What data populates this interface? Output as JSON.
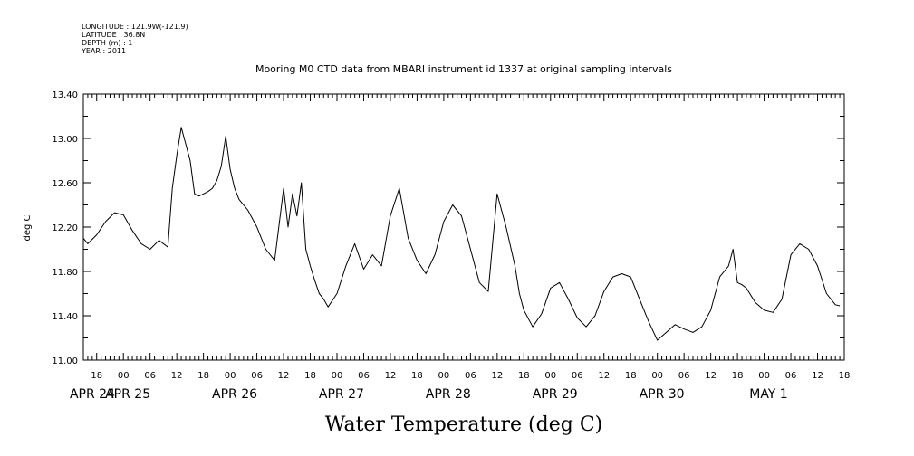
{
  "meta": {
    "longitude": "LONGITUDE : 121.9W(-121.9)",
    "latitude": "LATITUDE : 36.8N",
    "depth": "DEPTH (m) : 1",
    "year": "YEAR : 2011"
  },
  "chart_data": {
    "type": "line",
    "title": "Mooring M0 CTD data from MBARI instrument id 1337 at original sampling intervals",
    "xlabel": "Water Temperature (deg C)",
    "ylabel": "deg C",
    "ylim": [
      11.0,
      13.4
    ],
    "yticks": [
      "11.00",
      "11.40",
      "11.80",
      "12.20",
      "12.60",
      "13.00",
      "13.40"
    ],
    "xlim": [
      "2011-04-24T15:00",
      "2011-05-01T18:00"
    ],
    "x_hour_ticks": [
      "18",
      "00",
      "06",
      "12",
      "18",
      "00",
      "06",
      "12",
      "18",
      "00",
      "06",
      "12",
      "18",
      "00",
      "06",
      "12",
      "18",
      "00",
      "06",
      "12",
      "18",
      "00",
      "06",
      "12",
      "18",
      "00",
      "06",
      "12",
      "18",
      "00",
      "06",
      "12"
    ],
    "x_day_labels": [
      "APR 24",
      "APR 25",
      "APR 26",
      "APR 27",
      "APR 28",
      "APR 29",
      "APR 30",
      "MAY  1"
    ],
    "series": [
      {
        "color": "#000000",
        "x": [
          "2011-04-24T15:00",
          "2011-04-24T16:00",
          "2011-04-24T18:00",
          "2011-04-24T20:00",
          "2011-04-24T22:00",
          "2011-04-25T00:00",
          "2011-04-25T02:00",
          "2011-04-25T04:00",
          "2011-04-25T06:00",
          "2011-04-25T08:00",
          "2011-04-25T10:00",
          "2011-04-25T11:00",
          "2011-04-25T12:00",
          "2011-04-25T13:00",
          "2011-04-25T14:00",
          "2011-04-25T15:00",
          "2011-04-25T16:00",
          "2011-04-25T17:00",
          "2011-04-25T18:00",
          "2011-04-25T19:00",
          "2011-04-25T20:00",
          "2011-04-25T21:00",
          "2011-04-25T22:00",
          "2011-04-25T23:00",
          "2011-04-26T00:00",
          "2011-04-26T01:00",
          "2011-04-26T02:00",
          "2011-04-26T04:00",
          "2011-04-26T06:00",
          "2011-04-26T08:00",
          "2011-04-26T10:00",
          "2011-04-26T12:00",
          "2011-04-26T13:00",
          "2011-04-26T14:00",
          "2011-04-26T15:00",
          "2011-04-26T16:00",
          "2011-04-26T17:00",
          "2011-04-26T18:00",
          "2011-04-26T19:00",
          "2011-04-26T20:00",
          "2011-04-26T21:00",
          "2011-04-26T22:00",
          "2011-04-27T00:00",
          "2011-04-27T02:00",
          "2011-04-27T04:00",
          "2011-04-27T06:00",
          "2011-04-27T08:00",
          "2011-04-27T10:00",
          "2011-04-27T12:00",
          "2011-04-27T14:00",
          "2011-04-27T16:00",
          "2011-04-27T18:00",
          "2011-04-27T20:00",
          "2011-04-27T22:00",
          "2011-04-28T00:00",
          "2011-04-28T02:00",
          "2011-04-28T04:00",
          "2011-04-28T06:00",
          "2011-04-28T08:00",
          "2011-04-28T10:00",
          "2011-04-28T12:00",
          "2011-04-28T14:00",
          "2011-04-28T16:00",
          "2011-04-28T17:00",
          "2011-04-28T18:00",
          "2011-04-28T20:00",
          "2011-04-28T22:00",
          "2011-04-29T00:00",
          "2011-04-29T02:00",
          "2011-04-29T04:00",
          "2011-04-29T06:00",
          "2011-04-29T08:00",
          "2011-04-29T10:00",
          "2011-04-29T12:00",
          "2011-04-29T14:00",
          "2011-04-29T16:00",
          "2011-04-29T18:00",
          "2011-04-29T20:00",
          "2011-04-29T22:00",
          "2011-04-30T00:00",
          "2011-04-30T02:00",
          "2011-04-30T04:00",
          "2011-04-30T06:00",
          "2011-04-30T08:00",
          "2011-04-30T10:00",
          "2011-04-30T12:00",
          "2011-04-30T14:00",
          "2011-04-30T16:00",
          "2011-04-30T17:00",
          "2011-04-30T18:00",
          "2011-04-30T19:00",
          "2011-04-30T20:00",
          "2011-04-30T22:00",
          "2011-05-01T00:00",
          "2011-05-01T02:00",
          "2011-05-01T04:00",
          "2011-05-01T06:00",
          "2011-05-01T08:00",
          "2011-05-01T10:00",
          "2011-05-01T12:00",
          "2011-05-01T14:00",
          "2011-05-01T16:00",
          "2011-05-01T17:00"
        ],
        "values": [
          12.1,
          12.05,
          12.13,
          12.25,
          12.33,
          12.31,
          12.17,
          12.05,
          12.0,
          12.08,
          12.02,
          12.55,
          12.85,
          13.1,
          12.95,
          12.8,
          12.5,
          12.48,
          12.5,
          12.52,
          12.55,
          12.62,
          12.75,
          13.02,
          12.72,
          12.55,
          12.45,
          12.35,
          12.2,
          12.0,
          11.9,
          12.55,
          12.2,
          12.5,
          12.3,
          12.6,
          12.0,
          11.85,
          11.72,
          11.6,
          11.55,
          11.48,
          11.6,
          11.85,
          12.05,
          11.82,
          11.95,
          11.85,
          12.3,
          12.55,
          12.1,
          11.9,
          11.78,
          11.95,
          12.25,
          12.4,
          12.3,
          12.0,
          11.7,
          11.62,
          12.5,
          12.2,
          11.85,
          11.6,
          11.45,
          11.3,
          11.42,
          11.65,
          11.7,
          11.55,
          11.38,
          11.3,
          11.4,
          11.62,
          11.75,
          11.78,
          11.75,
          11.55,
          11.35,
          11.18,
          11.25,
          11.32,
          11.28,
          11.25,
          11.3,
          11.45,
          11.75,
          11.85,
          12.0,
          11.7,
          11.68,
          11.65,
          11.52,
          11.45,
          11.43,
          11.55,
          11.95,
          12.05,
          12.0,
          11.85,
          11.6,
          11.5,
          11.49
        ]
      }
    ]
  }
}
